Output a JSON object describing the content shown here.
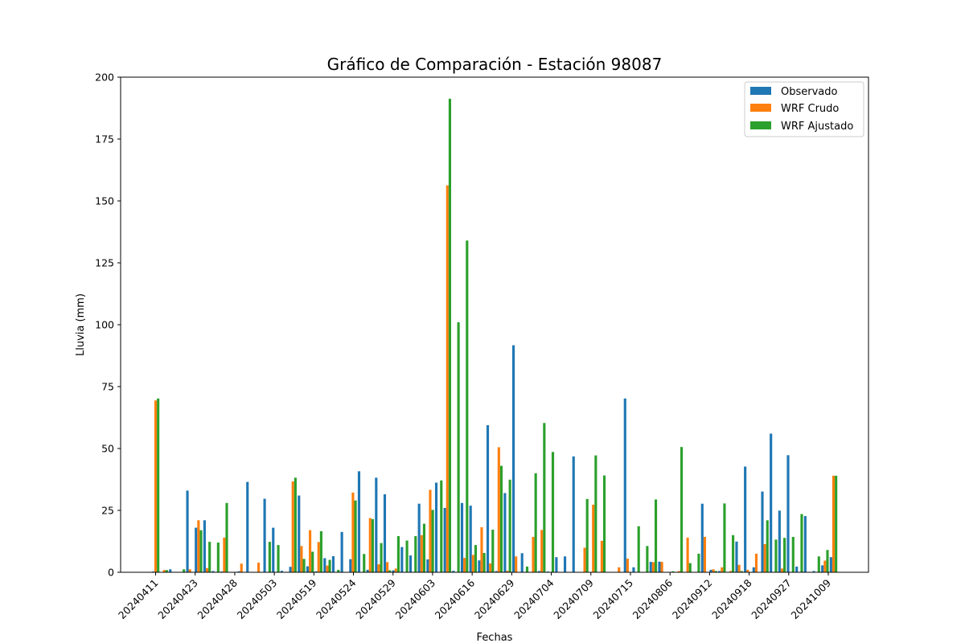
{
  "chart_data": {
    "type": "bar",
    "title": "Gráfico de Comparación - Estación 98087",
    "xlabel": "Fechas",
    "ylabel": "Lluvia (mm)",
    "ylim": [
      0,
      200
    ],
    "yticks": [
      0,
      25,
      50,
      75,
      100,
      125,
      150,
      175,
      200
    ],
    "grid": false,
    "legend_position": "top-right",
    "xtick_labels": [
      "20240411",
      "20240423",
      "20240428",
      "20240503",
      "20240519",
      "20240524",
      "20240529",
      "20240603",
      "20240616",
      "20240629",
      "20240704",
      "20240709",
      "20240715",
      "20240806",
      "20240912",
      "20240918",
      "20240927",
      "20241009"
    ],
    "colors": [
      "#1f77b4",
      "#ff7f0e",
      "#2ca02c"
    ],
    "series": [
      {
        "name": "Observado",
        "values": [
          0.3,
          0.0,
          1.2,
          0.0,
          33,
          18,
          21,
          0.5,
          0.3,
          0.0,
          0.4,
          36.5,
          0.0,
          29.7,
          18,
          0.6,
          2.2,
          31,
          2.4,
          0.4,
          5.7,
          6.5,
          16.3,
          5.3,
          40.8,
          1.0,
          38.2,
          31.5,
          0.8,
          10.2,
          6.8,
          27.7,
          5.2,
          36.2,
          26,
          0.6,
          28,
          26.9,
          4.8,
          59.4,
          0.5,
          32,
          91.7,
          7.7,
          0.0,
          0.5,
          0.3,
          6.1,
          6.4,
          46.8,
          0.0,
          0.0,
          0.0,
          0.0,
          0.0,
          70.2,
          2.0,
          0.0,
          4.2,
          4.3,
          0.0,
          0.0,
          0.0,
          0.0,
          27.7,
          1.0,
          0.5,
          0.0,
          12.4,
          42.7,
          2.0,
          32.6,
          56,
          24.9,
          47.3,
          2.3,
          22.7,
          0.5,
          2.8,
          6.1
        ]
      },
      {
        "name": "WRF Crudo",
        "values": [
          69.4,
          0.9,
          0.0,
          0.0,
          1.2,
          21,
          1.7,
          0.0,
          14.0,
          0.0,
          3.5,
          0.0,
          3.9,
          0.0,
          0.0,
          0.0,
          36.7,
          10.6,
          17.0,
          12.2,
          2.7,
          0.0,
          0.0,
          32.2,
          0.0,
          21.9,
          3.2,
          4.1,
          1.5,
          0.0,
          0.0,
          15.0,
          33.3,
          0.0,
          156.3,
          0.0,
          5.8,
          7.0,
          18.2,
          3.6,
          50.5,
          0.6,
          6.4,
          0.0,
          14.3,
          17.1,
          0.0,
          0.0,
          0.0,
          0.0,
          9.9,
          27.3,
          12.7,
          0.0,
          2.0,
          5.5,
          0.0,
          0.0,
          4.1,
          4.2,
          0.0,
          0.5,
          14.0,
          0.0,
          14.3,
          1.2,
          2.0,
          0.5,
          3.0,
          1.0,
          7.5,
          11.4,
          0.0,
          1.5,
          0.0,
          0.0,
          0.0,
          0.0,
          4.7,
          39.0
        ]
      },
      {
        "name": "WRF Ajustado",
        "values": [
          70.2,
          0.9,
          0.0,
          1.2,
          0.0,
          17,
          12.3,
          12,
          28.0,
          0.0,
          0.0,
          0.0,
          0.0,
          12.3,
          11.0,
          0.0,
          38.2,
          5.4,
          8.3,
          16.6,
          5.0,
          1.0,
          0.0,
          29.0,
          7.4,
          21.5,
          11.8,
          0.8,
          14.6,
          12.8,
          14.6,
          19.6,
          25.2,
          37.1,
          191.3,
          101,
          134,
          11,
          7.8,
          17.2,
          43,
          37.4,
          0.0,
          2.3,
          40,
          60.3,
          48.6,
          0.0,
          0.0,
          0.0,
          29.6,
          47.2,
          39.1,
          0.0,
          0.0,
          0.0,
          18.6,
          10.6,
          29.4,
          0.0,
          0.4,
          50.6,
          3.7,
          7.5,
          0.0,
          0.5,
          27.8,
          15.0,
          0.5,
          0.0,
          0.0,
          21.0,
          13.2,
          13.9,
          14.3,
          23.5,
          0.0,
          6.4,
          9.0,
          39.0
        ]
      }
    ]
  }
}
